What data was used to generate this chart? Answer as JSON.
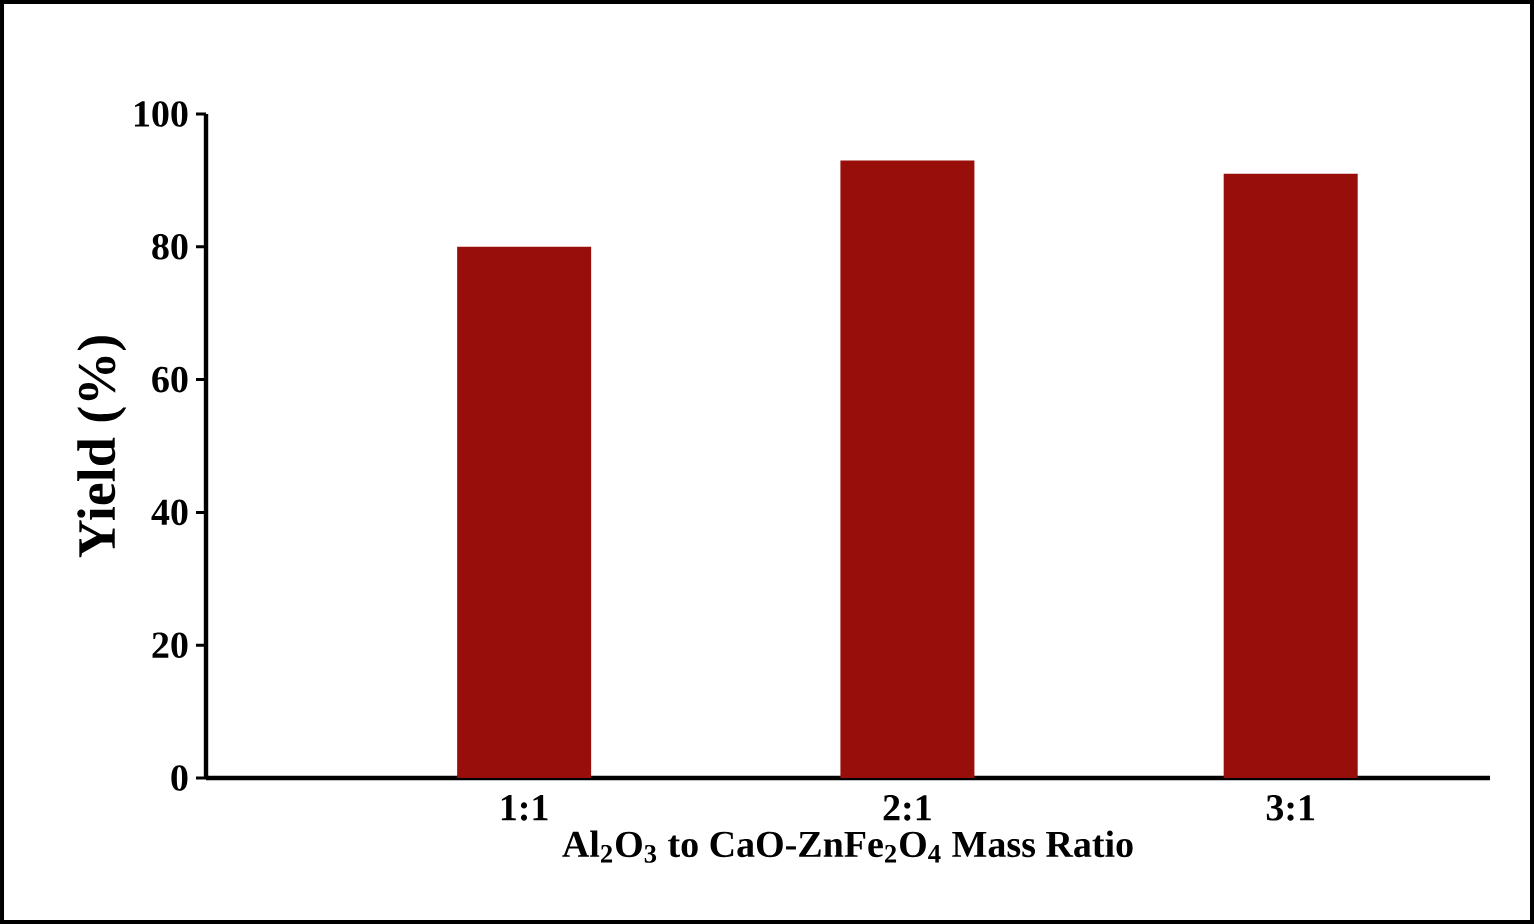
{
  "chart_data": {
    "type": "bar",
    "xlabel": "Al$_{2}$O$_{3}$ to CaO-ZnFe$_{2}$O$_{4}$ Mass Ratio",
    "ylabel": "Yield (%)",
    "categories": [
      "1:1",
      "2:1",
      "3:1"
    ],
    "values": [
      80,
      93,
      91
    ],
    "color": "#970e0b",
    "ylim": [
      0,
      100
    ],
    "yticks": [
      0,
      20,
      40,
      60,
      80,
      100
    ]
  }
}
